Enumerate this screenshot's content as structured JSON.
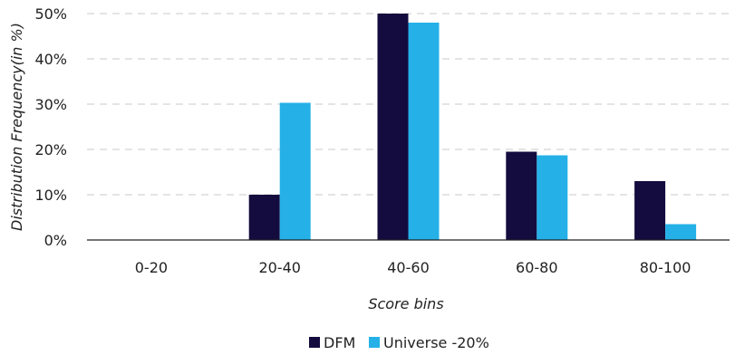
{
  "chart_data": {
    "type": "bar",
    "title": "",
    "xlabel": "Score bins",
    "ylabel": "Distribution Frequency(in %)",
    "categories": [
      "0-20",
      "20-40",
      "40-60",
      "60-80",
      "80-100"
    ],
    "series": [
      {
        "name": "DFM",
        "color": "#140c3e",
        "values": [
          0,
          10,
          50,
          19.5,
          13
        ]
      },
      {
        "name": "Universe -20%",
        "color": "#25b0e8",
        "values": [
          0,
          30.3,
          48,
          18.7,
          3.5
        ]
      }
    ],
    "ylim": [
      0,
      50
    ],
    "yticks": [
      {
        "value": 0,
        "label": "0%"
      },
      {
        "value": 10,
        "label": "10%"
      },
      {
        "value": 20,
        "label": "20%"
      },
      {
        "value": 30,
        "label": "30%"
      },
      {
        "value": 40,
        "label": "40%"
      },
      {
        "value": 50,
        "label": "50%"
      }
    ],
    "grid": true,
    "legend": "bottom"
  }
}
